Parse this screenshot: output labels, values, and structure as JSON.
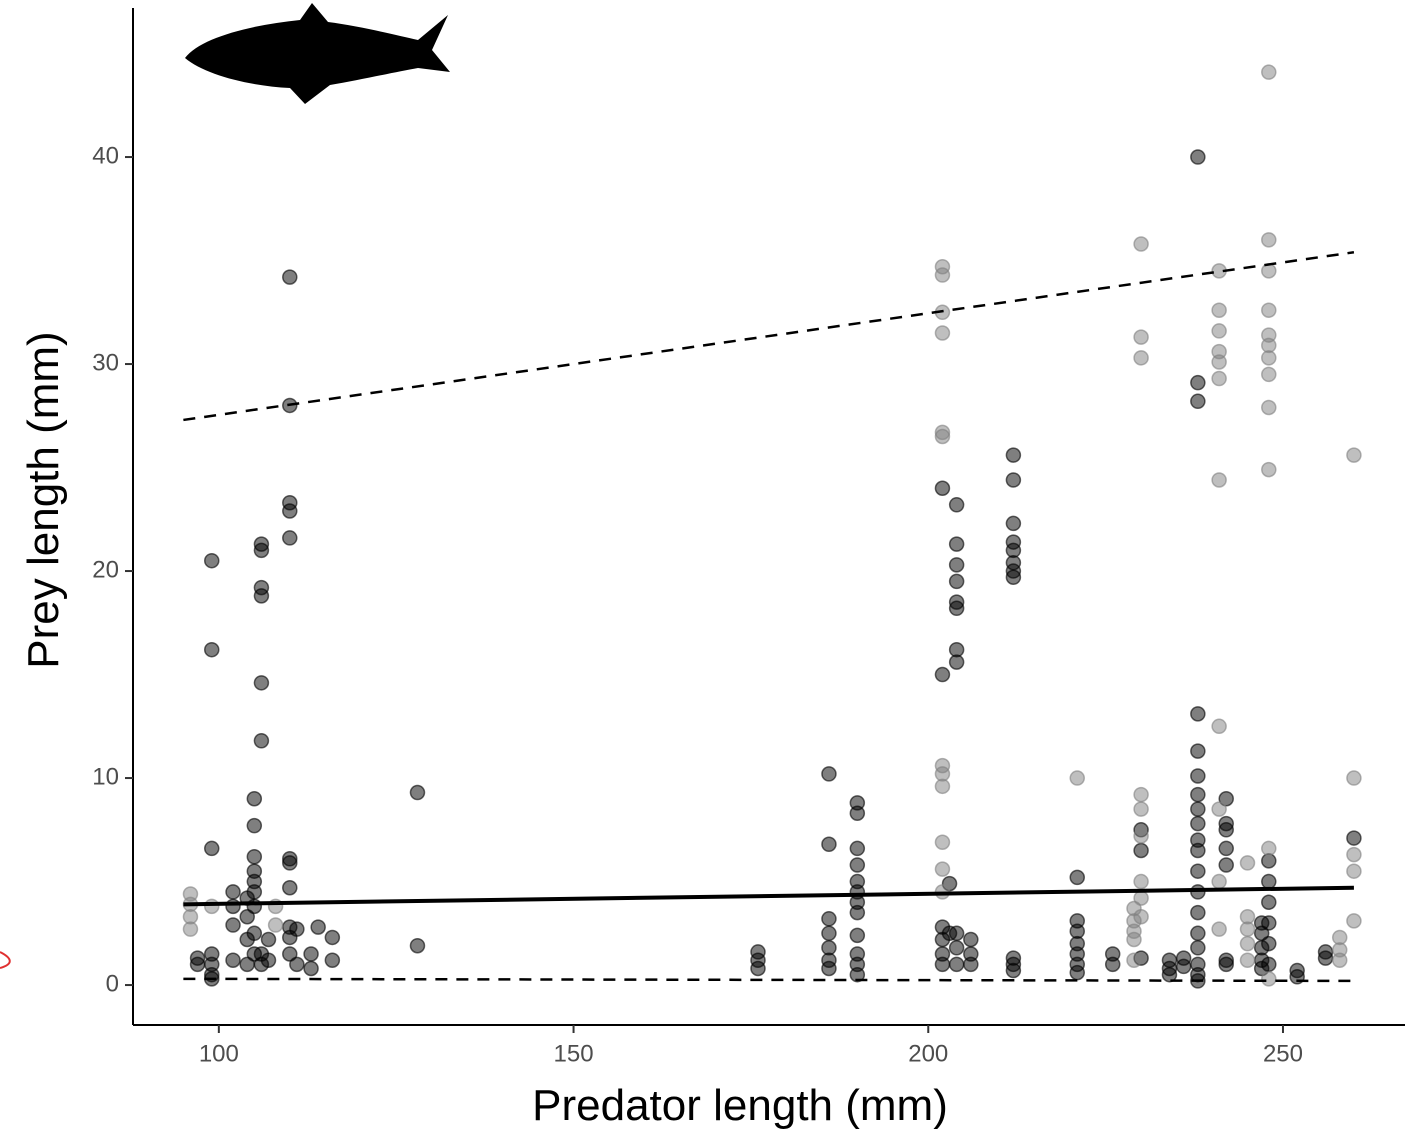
{
  "chart_data": {
    "type": "scatter",
    "x_label": "Predator length (mm)",
    "y_label": "Prey length (mm)",
    "xlim": [
      87.9,
      267.2
    ],
    "ylim": [
      -1.93,
      47.2
    ],
    "xticks": [
      100,
      150,
      200,
      250
    ],
    "yticks": [
      0,
      10,
      20,
      30,
      40
    ],
    "grid": false,
    "series": [
      {
        "color": "#000000",
        "x": [
          99,
          99,
          99,
          99,
          99,
          99,
          99,
          97,
          97,
          102,
          102,
          102,
          102,
          104,
          104,
          104,
          104,
          105,
          105,
          105,
          105,
          105,
          105,
          105,
          105,
          105,
          106,
          106,
          106,
          106,
          106,
          106,
          106,
          106,
          107,
          107,
          110,
          110,
          110,
          110,
          110,
          110,
          110,
          110,
          110,
          110,
          110,
          111,
          111,
          113,
          113,
          114,
          116,
          116,
          128,
          128,
          176,
          176,
          176,
          186,
          186,
          186,
          186,
          186,
          186,
          186,
          190,
          190,
          190,
          190,
          190,
          190,
          190,
          190,
          190,
          190,
          190,
          190,
          202,
          202,
          202,
          202,
          202,
          202,
          203,
          203,
          204,
          204,
          204,
          204,
          204,
          204,
          204,
          204,
          204,
          204,
          204,
          206,
          206,
          206,
          212,
          212,
          212,
          212,
          212,
          212,
          212,
          212,
          212,
          212,
          212,
          221,
          221,
          221,
          221,
          221,
          221,
          221,
          226,
          226,
          230,
          230,
          230,
          234,
          234,
          234,
          236,
          236,
          238,
          238,
          238,
          238,
          238,
          238,
          238,
          238,
          238,
          238,
          238,
          238,
          238,
          238,
          238,
          238,
          238,
          238,
          238,
          242,
          242,
          242,
          242,
          242,
          242,
          242,
          247,
          247,
          247,
          247,
          247,
          248,
          248,
          248,
          248,
          248,
          248,
          252,
          252,
          256,
          256,
          260
        ],
        "values": [
          20.5,
          16.2,
          6.6,
          1.5,
          1.0,
          0.5,
          0.3,
          1.3,
          1.0,
          4.5,
          3.8,
          2.9,
          1.2,
          4.2,
          3.3,
          2.2,
          1.0,
          9.0,
          7.7,
          6.2,
          5.5,
          5.0,
          4.5,
          3.8,
          2.5,
          1.5,
          21.3,
          21.0,
          19.2,
          18.8,
          14.6,
          11.8,
          1.5,
          1.0,
          2.2,
          1.2,
          34.2,
          28.0,
          23.3,
          22.9,
          21.6,
          6.1,
          5.9,
          4.7,
          2.8,
          2.3,
          1.5,
          2.7,
          1.0,
          1.5,
          0.8,
          2.8,
          2.3,
          1.2,
          9.3,
          1.9,
          1.6,
          1.2,
          0.8,
          10.2,
          6.8,
          3.2,
          2.5,
          1.8,
          1.2,
          0.8,
          8.8,
          8.3,
          6.6,
          5.8,
          5.0,
          4.5,
          4.0,
          3.5,
          2.4,
          1.5,
          1.0,
          0.5,
          24.0,
          15.0,
          2.8,
          2.2,
          1.5,
          1.0,
          2.5,
          4.9,
          23.2,
          21.3,
          20.3,
          19.5,
          18.5,
          18.2,
          16.2,
          15.6,
          2.5,
          1.8,
          1.0,
          2.2,
          1.5,
          1.0,
          25.6,
          24.4,
          22.3,
          21.4,
          21.0,
          20.4,
          20.0,
          19.7,
          1.3,
          1.0,
          0.7,
          5.2,
          3.1,
          2.6,
          2.0,
          1.5,
          1.0,
          0.6,
          1.5,
          1.0,
          7.5,
          6.5,
          1.3,
          1.2,
          0.8,
          0.5,
          1.3,
          0.9,
          40.0,
          29.1,
          28.2,
          13.1,
          11.3,
          10.1,
          9.2,
          8.5,
          7.8,
          7.0,
          6.5,
          5.5,
          4.5,
          3.5,
          2.5,
          1.8,
          1.0,
          0.5,
          0.2,
          9.0,
          7.8,
          7.5,
          6.6,
          5.8,
          1.2,
          1.0,
          3.0,
          2.5,
          1.8,
          1.2,
          0.8,
          6.0,
          5.0,
          4.0,
          3.0,
          2.0,
          1.0,
          0.7,
          0.4,
          1.6,
          1.3,
          7.1
        ]
      },
      {
        "color": "#808080",
        "x": [
          96,
          96,
          96,
          96,
          99,
          108,
          108,
          202,
          202,
          202,
          202,
          202,
          202,
          202,
          202,
          202,
          202,
          202,
          202,
          221,
          229,
          229,
          229,
          229,
          229,
          230,
          230,
          230,
          230,
          230,
          230,
          230,
          230,
          230,
          241,
          241,
          241,
          241,
          241,
          241,
          241,
          241,
          241,
          241,
          241,
          245,
          245,
          245,
          245,
          245,
          248,
          248,
          248,
          248,
          248,
          248,
          248,
          248,
          248,
          248,
          248,
          248,
          258,
          258,
          258,
          260,
          260,
          260,
          260,
          260
        ],
        "values": [
          4.4,
          3.9,
          3.3,
          2.7,
          3.8,
          3.8,
          2.9,
          34.7,
          34.3,
          32.5,
          31.5,
          26.7,
          26.5,
          10.6,
          10.2,
          9.6,
          6.9,
          5.6,
          4.5,
          10.0,
          3.7,
          3.1,
          2.6,
          2.2,
          1.2,
          35.8,
          31.3,
          30.3,
          9.2,
          8.5,
          7.2,
          5.0,
          4.2,
          3.3,
          34.5,
          32.6,
          31.6,
          30.6,
          30.1,
          29.3,
          24.4,
          12.5,
          8.5,
          5.0,
          2.7,
          5.9,
          3.3,
          2.7,
          2.0,
          1.2,
          44.1,
          36.0,
          34.5,
          32.6,
          31.4,
          30.9,
          30.3,
          29.5,
          27.9,
          24.9,
          6.6,
          0.3,
          2.3,
          1.7,
          1.2,
          25.6,
          10.0,
          6.3,
          5.5,
          3.1
        ]
      }
    ],
    "fit_lines": [
      {
        "x": [
          95,
          260
        ],
        "values": [
          3.9,
          4.7
        ],
        "dashed": false
      },
      {
        "x": [
          95,
          260
        ],
        "values": [
          27.3,
          35.4
        ],
        "dashed": true
      },
      {
        "x": [
          95,
          260
        ],
        "values": [
          0.3,
          0.2
        ],
        "dashed": true
      }
    ]
  }
}
